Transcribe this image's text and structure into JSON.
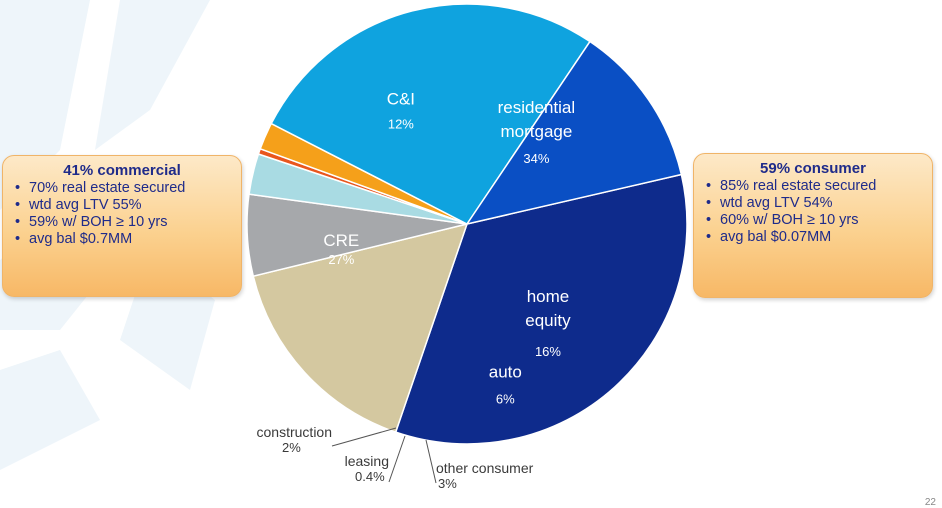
{
  "chart_data": {
    "type": "pie",
    "title": "",
    "slices": [
      {
        "label": "residential mortgage",
        "lines": [
          "residential",
          "mortgage"
        ],
        "value": 34,
        "pct_label": "34%",
        "color": "#0e2b8c",
        "text_color": "#ffffff"
      },
      {
        "label": "home equity",
        "lines": [
          "home",
          "equity"
        ],
        "value": 16,
        "pct_label": "16%",
        "color": "#d4c8a0",
        "text_color": "#ffffff"
      },
      {
        "label": "auto",
        "lines": [
          "auto"
        ],
        "value": 6,
        "pct_label": "6%",
        "color": "#a6a8ab",
        "text_color": "#ffffff"
      },
      {
        "label": "other consumer",
        "lines": [
          "other consumer"
        ],
        "value": 3,
        "pct_label": "3%",
        "color": "#a9dbe3",
        "text_color": "#3a3a3a"
      },
      {
        "label": "leasing",
        "lines": [
          "leasing"
        ],
        "value": 0.4,
        "pct_label": "0.4%",
        "color": "#e9561d",
        "text_color": "#3a3a3a"
      },
      {
        "label": "construction",
        "lines": [
          "construction"
        ],
        "value": 2,
        "pct_label": "2%",
        "color": "#f5a01a",
        "text_color": "#3a3a3a"
      },
      {
        "label": "CRE",
        "lines": [
          "CRE"
        ],
        "value": 27,
        "pct_label": "27%",
        "color": "#0fa3df",
        "text_color": "#ffffff"
      },
      {
        "label": "C&I",
        "lines": [
          "C&I"
        ],
        "value": 12,
        "pct_label": "12%",
        "color": "#0a4fc4",
        "text_color": "#ffffff"
      }
    ]
  },
  "callouts": {
    "commercial": {
      "title": "41% commercial",
      "items": [
        "70% real estate secured",
        "wtd avg LTV 55%",
        "59% w/ BOH ≥ 10 yrs",
        "avg bal $0.7MM"
      ]
    },
    "consumer": {
      "title": "59% consumer",
      "items": [
        "85% real estate secured",
        "wtd avg LTV 54%",
        "60% w/ BOH ≥ 10 yrs",
        "avg bal $0.07MM"
      ]
    }
  },
  "page_number": "22"
}
